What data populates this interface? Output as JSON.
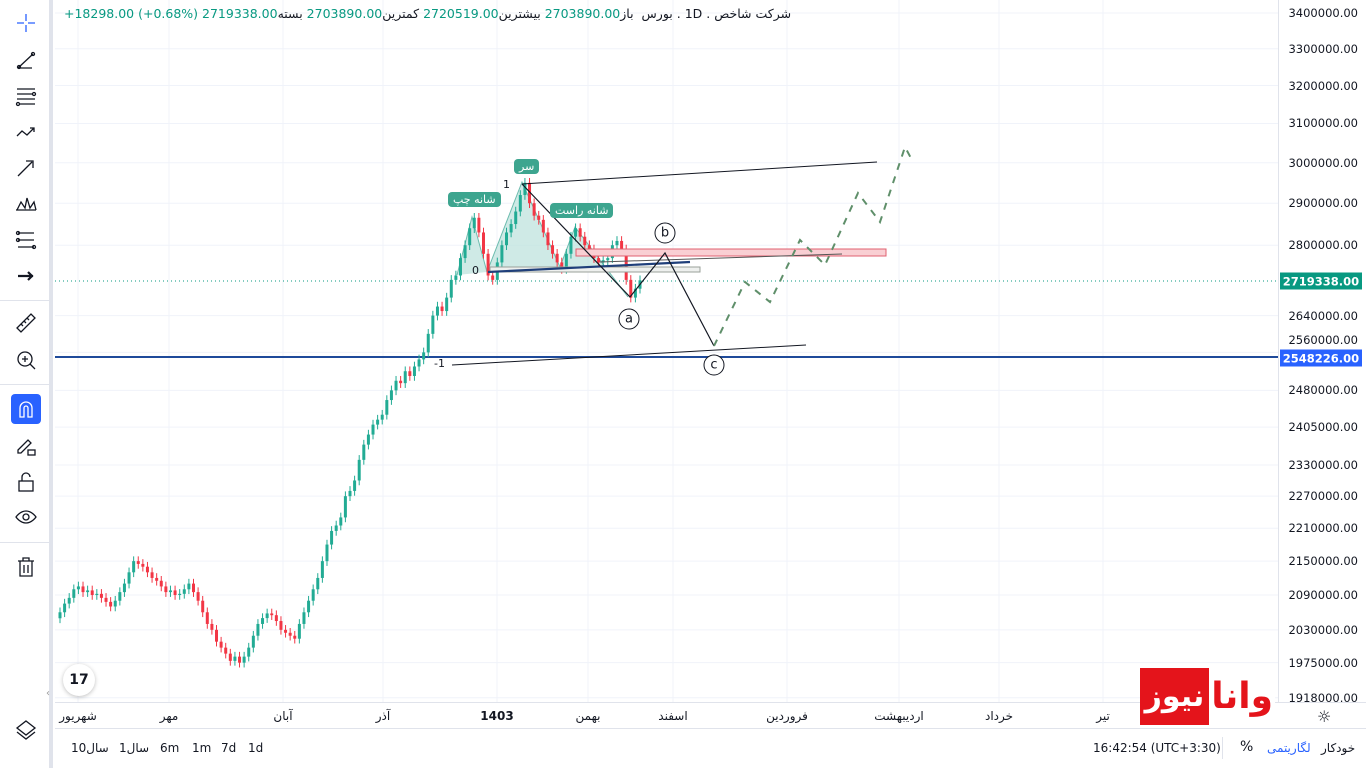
{
  "header": {
    "symbol": "شرکت شاخص",
    "interval": "1D",
    "exchange": "بورس",
    "open_label": "باز",
    "open": "2703890.00",
    "high_label": "بیشترین",
    "high": "2720519.00",
    "low_label": "کمترین",
    "low": "2703890.00",
    "close_label": "بسته",
    "close": "2719338.00",
    "change": "+18298.00 (+0.68%)"
  },
  "chart_data": {
    "type": "candlestick",
    "scale": "log",
    "price_unit_note": "closes in thousands",
    "closes_k": [
      2060,
      2075,
      2085,
      2100,
      2105,
      2095,
      2098,
      2090,
      2092,
      2085,
      2078,
      2070,
      2080,
      2095,
      2110,
      2130,
      2150,
      2145,
      2140,
      2130,
      2120,
      2115,
      2105,
      2095,
      2098,
      2090,
      2092,
      2100,
      2110,
      2095,
      2080,
      2060,
      2040,
      2030,
      2010,
      2000,
      1990,
      1978,
      1985,
      1975,
      1985,
      2000,
      2020,
      2040,
      2050,
      2058,
      2055,
      2045,
      2030,
      2025,
      2020,
      2015,
      2040,
      2060,
      2080,
      2100,
      2120,
      2150,
      2180,
      2205,
      2215,
      2230,
      2270,
      2280,
      2300,
      2340,
      2370,
      2390,
      2410,
      2420,
      2430,
      2460,
      2480,
      2500,
      2495,
      2520,
      2510,
      2530,
      2545,
      2560,
      2600,
      2640,
      2660,
      2650,
      2680,
      2720,
      2730,
      2770,
      2800,
      2840,
      2865,
      2830,
      2780,
      2730,
      2720,
      2760,
      2800,
      2830,
      2850,
      2880,
      2920,
      2950,
      2900,
      2870,
      2860,
      2830,
      2800,
      2780,
      2760,
      2745,
      2780,
      2820,
      2840,
      2820,
      2800,
      2790,
      2770,
      2760,
      2765,
      2770,
      2800,
      2810,
      2790,
      2720,
      2680,
      2700,
      2719
    ],
    "y_ticks": [
      "3400000.00",
      "3300000.00",
      "3200000.00",
      "3100000.00",
      "3000000.00",
      "2900000.00",
      "2800000.00",
      "2640000.00",
      "2560000.00",
      "2480000.00",
      "2405000.00",
      "2330000.00",
      "2270000.00",
      "2210000.00",
      "2150000.00",
      "2090000.00",
      "2030000.00",
      "1975000.00",
      "1918000.00"
    ],
    "x_ticks": [
      "شهریور",
      "مهر",
      "آبان",
      "آذر",
      "1403",
      "بهمن",
      "اسفند",
      "فروردین",
      "اردیبهشت",
      "خرداد",
      "تیر"
    ],
    "last_price": "2719338.00",
    "horizontal_line_price": "2548226.00",
    "colors": {
      "up": "#22ab94",
      "down": "#f23645",
      "last": "#089981",
      "hline": "#2962ff"
    }
  },
  "annotations": {
    "left_shoulder": "شانه چپ",
    "head": "سر",
    "right_shoulder": "شانه راست",
    "wave_a": "a",
    "wave_b": "b",
    "wave_c": "c",
    "level_1": "1",
    "level_0": "0",
    "level_m1": "-1"
  },
  "tv_logo": "17",
  "watermark": {
    "red_part": "نیوز",
    "white_part": "وانا"
  },
  "bottom": {
    "ranges": [
      "10سال",
      "1سال",
      "6m",
      "1m",
      "7d",
      "1d"
    ],
    "time": "16:42:54 (UTC+3:30)",
    "percent": "%",
    "log": "لگاریتمی",
    "auto": "خودکار"
  }
}
